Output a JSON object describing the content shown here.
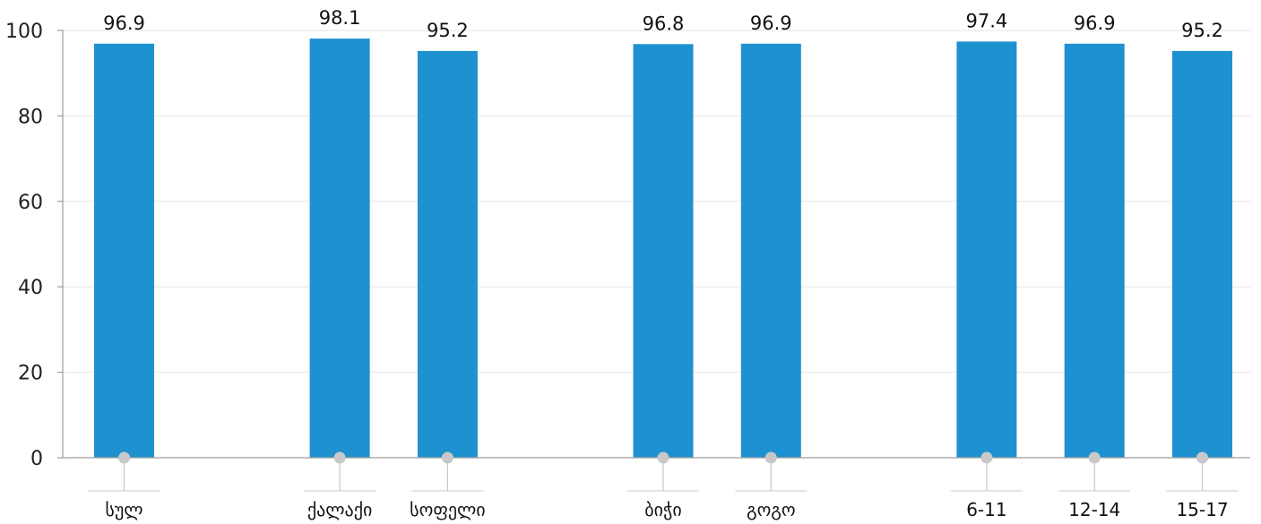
{
  "chart_data": {
    "type": "bar",
    "categories": [
      "სულ",
      "ქალაქი",
      "სოფელი",
      "ბიჭი",
      "გოგო",
      "6-11",
      "12-14",
      "15-17"
    ],
    "values": [
      96.9,
      98.1,
      95.2,
      96.8,
      96.9,
      97.4,
      96.9,
      95.2
    ],
    "value_labels": [
      "96.9",
      "98.1",
      "95.2",
      "96.8",
      "96.9",
      "97.4",
      "96.9",
      "95.2"
    ],
    "groups": [
      [
        0
      ],
      [
        1,
        2
      ],
      [
        3,
        4
      ],
      [
        5,
        6,
        7
      ]
    ],
    "ylim": [
      0,
      100
    ],
    "yticks": [
      0,
      20,
      40,
      60,
      80,
      100
    ],
    "ytick_labels": [
      "0",
      "20",
      "40",
      "60",
      "80",
      "100"
    ],
    "title": "",
    "xlabel": "",
    "ylabel": "",
    "grid": true,
    "legend": "none",
    "colors": {
      "bar": "#1e91d0",
      "gridline": "#e6e6e6",
      "axis": "#9e9e9e",
      "connector": "#c8c8c8"
    }
  }
}
